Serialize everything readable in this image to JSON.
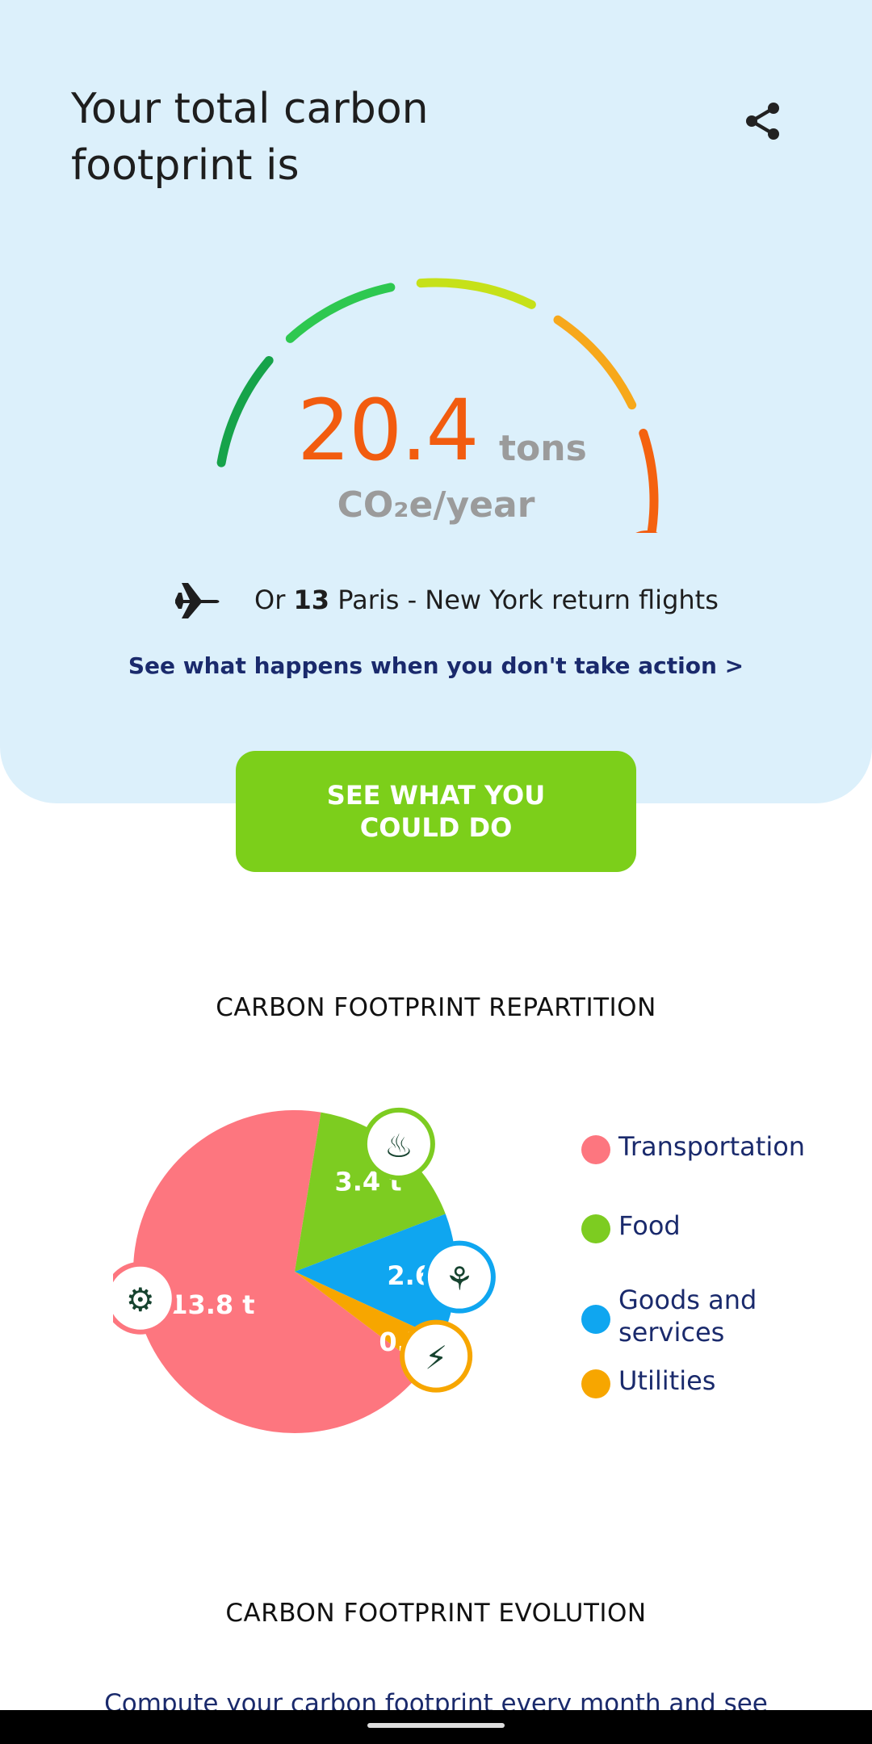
{
  "header": {
    "title": "Your total carbon footprint is",
    "share_icon": "share-icon"
  },
  "gauge": {
    "value": "20.4",
    "unit": "tons",
    "subunit": "CO₂e/year",
    "level": 0.84,
    "segment_colors": [
      "#16a34a",
      "#2ec850",
      "#c6e119",
      "#f7a81b",
      "#f4620f",
      "#f04a5a"
    ]
  },
  "equivalent": {
    "icon": "airplane-icon",
    "prefix": "Or",
    "count": "13",
    "suffix": "Paris - New York return flights"
  },
  "action_link": "See what happens when you don't take action >",
  "cta": {
    "label": "SEE WHAT YOU COULD DO",
    "color": "#7ccf1a"
  },
  "repartition": {
    "title": "CARBON FOOTPRINT REPARTITION"
  },
  "chart_data": {
    "type": "pie",
    "title": "",
    "series": [
      {
        "name": "Transportation",
        "value": 13.8,
        "label": "13.8 t",
        "color": "#fd767f",
        "icon": "wheel-icon"
      },
      {
        "name": "Food",
        "value": 3.4,
        "label": "3.4 t",
        "color": "#7dcc21",
        "icon": "chef-hat-icon"
      },
      {
        "name": "Goods and services",
        "value": 2.6,
        "label": "2.6 t",
        "color": "#0fa6f0",
        "icon": "bottle-leaf-icon"
      },
      {
        "name": "Utilities",
        "value": 0.7,
        "label": "0.7 t",
        "color": "#f7a600",
        "icon": "plug-bolt-icon"
      }
    ],
    "legend_position": "right"
  },
  "evolution": {
    "title": "CARBON FOOTPRINT EVOLUTION",
    "text": "Compute your carbon footprint every month and see"
  }
}
